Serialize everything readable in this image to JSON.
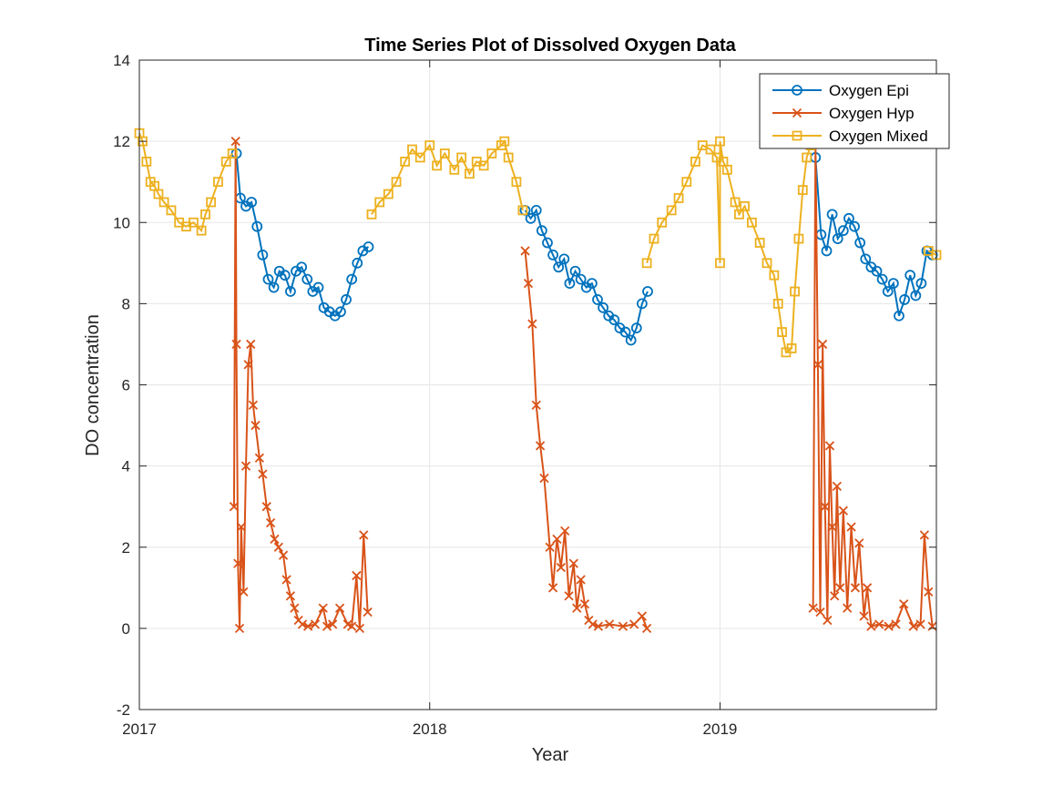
{
  "chart_data": {
    "type": "line",
    "title": "Time Series Plot of Dissolved Oxygen Data",
    "xlabel": "Year",
    "ylabel": "DO concentration",
    "xlim": [
      "2017-01-01",
      "2019-09-30"
    ],
    "ylim": [
      -2,
      14
    ],
    "x_ticks": [
      "2017",
      "2018",
      "2019"
    ],
    "y_ticks": [
      "-2",
      "0",
      "2",
      "4",
      "6",
      "8",
      "10",
      "12",
      "14"
    ],
    "grid": true,
    "legend_position": "top-right",
    "series": [
      {
        "name": "Oxygen Epi",
        "color": "#0072BD",
        "marker": "circle",
        "x": [
          "2017-05-03",
          "2017-05-08",
          "2017-05-15",
          "2017-05-22",
          "2017-05-29",
          "2017-06-05",
          "2017-06-12",
          "2017-06-19",
          "2017-06-26",
          "2017-07-03",
          "2017-07-10",
          "2017-07-17",
          "2017-07-24",
          "2017-07-31",
          "2017-08-07",
          "2017-08-14",
          "2017-08-21",
          "2017-08-28",
          "2017-09-04",
          "2017-09-11",
          "2017-09-18",
          "2017-09-25",
          "2017-10-02",
          "2017-10-09",
          "2017-10-16",
          "2018-05-01",
          "2018-05-08",
          "2018-05-15",
          "2018-05-22",
          "2018-05-29",
          "2018-06-05",
          "2018-06-12",
          "2018-06-19",
          "2018-06-26",
          "2018-07-03",
          "2018-07-10",
          "2018-07-17",
          "2018-07-24",
          "2018-07-31",
          "2018-08-07",
          "2018-08-14",
          "2018-08-21",
          "2018-08-28",
          "2018-09-04",
          "2018-09-11",
          "2018-09-18",
          "2018-09-25",
          "2018-10-02",
          "2019-05-01",
          "2019-05-08",
          "2019-05-15",
          "2019-05-22",
          "2019-05-29",
          "2019-06-05",
          "2019-06-12",
          "2019-06-19",
          "2019-06-26",
          "2019-07-03",
          "2019-07-10",
          "2019-07-17",
          "2019-07-24",
          "2019-07-31",
          "2019-08-07",
          "2019-08-14",
          "2019-08-21",
          "2019-08-28",
          "2019-09-04",
          "2019-09-11",
          "2019-09-18",
          "2019-09-25"
        ],
        "y": [
          11.7,
          10.6,
          10.4,
          10.5,
          9.9,
          9.2,
          8.6,
          8.4,
          8.8,
          8.7,
          8.3,
          8.8,
          8.9,
          8.6,
          8.3,
          8.4,
          7.9,
          7.8,
          7.7,
          7.8,
          8.1,
          8.6,
          9.0,
          9.3,
          9.4,
          10.3,
          10.1,
          10.3,
          9.8,
          9.5,
          9.2,
          8.9,
          9.1,
          8.5,
          8.8,
          8.6,
          8.4,
          8.5,
          8.1,
          7.9,
          7.7,
          7.6,
          7.4,
          7.3,
          7.1,
          7.4,
          8.0,
          8.3,
          11.6,
          9.7,
          9.3,
          10.2,
          9.6,
          9.8,
          10.1,
          9.9,
          9.5,
          9.1,
          8.9,
          8.8,
          8.6,
          8.3,
          8.5,
          7.7,
          8.1,
          8.7,
          8.2,
          8.5,
          9.3,
          9.2
        ]
      },
      {
        "name": "Oxygen Hyp",
        "color": "#D95319",
        "marker": "x",
        "x": [
          "2017-04-30",
          "2017-05-02",
          "2017-05-03",
          "2017-05-05",
          "2017-05-07",
          "2017-05-09",
          "2017-05-12",
          "2017-05-15",
          "2017-05-18",
          "2017-05-21",
          "2017-05-24",
          "2017-05-27",
          "2017-06-01",
          "2017-06-05",
          "2017-06-10",
          "2017-06-15",
          "2017-06-20",
          "2017-06-25",
          "2017-07-01",
          "2017-07-05",
          "2017-07-10",
          "2017-07-15",
          "2017-07-20",
          "2017-07-25",
          "2017-08-01",
          "2017-08-10",
          "2017-08-20",
          "2017-08-25",
          "2017-09-01",
          "2017-09-10",
          "2017-09-20",
          "2017-09-25",
          "2017-10-01",
          "2017-10-05",
          "2017-10-10",
          "2017-10-15",
          "2018-05-01",
          "2018-05-05",
          "2018-05-10",
          "2018-05-15",
          "2018-05-20",
          "2018-05-25",
          "2018-06-01",
          "2018-06-05",
          "2018-06-10",
          "2018-06-15",
          "2018-06-20",
          "2018-06-25",
          "2018-07-01",
          "2018-07-05",
          "2018-07-10",
          "2018-07-15",
          "2018-07-20",
          "2018-07-25",
          "2018-08-01",
          "2018-08-15",
          "2018-09-01",
          "2018-09-15",
          "2018-09-25",
          "2018-10-01",
          "2019-04-28",
          "2019-05-01",
          "2019-05-04",
          "2019-05-07",
          "2019-05-10",
          "2019-05-13",
          "2019-05-16",
          "2019-05-19",
          "2019-05-22",
          "2019-05-25",
          "2019-05-28",
          "2019-06-01",
          "2019-06-05",
          "2019-06-10",
          "2019-06-15",
          "2019-06-20",
          "2019-06-25",
          "2019-07-01",
          "2019-07-05",
          "2019-07-10",
          "2019-07-20",
          "2019-08-01",
          "2019-08-10",
          "2019-08-20",
          "2019-09-01",
          "2019-09-10",
          "2019-09-15",
          "2019-09-20",
          "2019-09-25"
        ],
        "y": [
          3.0,
          12.0,
          7.0,
          1.6,
          0.0,
          2.5,
          0.9,
          4.0,
          6.5,
          7.0,
          5.5,
          5.0,
          4.2,
          3.8,
          3.0,
          2.6,
          2.2,
          2.0,
          1.8,
          1.2,
          0.8,
          0.5,
          0.2,
          0.1,
          0.05,
          0.1,
          0.5,
          0.05,
          0.1,
          0.5,
          0.1,
          0.05,
          1.3,
          0.0,
          2.3,
          0.4,
          9.3,
          8.5,
          7.5,
          5.5,
          4.5,
          3.7,
          2.0,
          1.0,
          2.2,
          1.5,
          2.4,
          0.8,
          1.6,
          0.5,
          1.2,
          0.6,
          0.2,
          0.1,
          0.05,
          0.1,
          0.05,
          0.1,
          0.3,
          0.0,
          0.5,
          12.0,
          6.5,
          0.4,
          7.0,
          3.0,
          0.2,
          4.5,
          2.5,
          0.8,
          3.5,
          1.0,
          2.9,
          0.5,
          2.5,
          1.0,
          2.1,
          0.3,
          1.0,
          0.05,
          0.1,
          0.05,
          0.1,
          0.6,
          0.05,
          0.1,
          2.3,
          0.9,
          0.05
        ]
      },
      {
        "name": "Oxygen Mixed",
        "color": "#EDB120",
        "marker": "square",
        "x": [
          "2017-01-01",
          "2017-01-05",
          "2017-01-10",
          "2017-01-15",
          "2017-01-20",
          "2017-01-25",
          "2017-02-01",
          "2017-02-10",
          "2017-02-20",
          "2017-03-01",
          "2017-03-10",
          "2017-03-20",
          "2017-03-25",
          "2017-04-01",
          "2017-04-10",
          "2017-04-20",
          "2017-04-28",
          "2017-10-20",
          "2017-10-30",
          "2017-11-10",
          "2017-11-20",
          "2017-12-01",
          "2017-12-10",
          "2017-12-20",
          "2018-01-01",
          "2018-01-10",
          "2018-01-20",
          "2018-02-01",
          "2018-02-10",
          "2018-02-20",
          "2018-03-01",
          "2018-03-10",
          "2018-03-20",
          "2018-04-01",
          "2018-04-05",
          "2018-04-10",
          "2018-04-20",
          "2018-04-28",
          "2018-10-01",
          "2018-10-10",
          "2018-10-20",
          "2018-11-01",
          "2018-11-10",
          "2018-11-20",
          "2018-12-01",
          "2018-12-10",
          "2018-12-20",
          "2018-12-28",
          "2019-01-01",
          "2019-01-01",
          "2019-01-05",
          "2019-01-10",
          "2019-01-20",
          "2019-01-25",
          "2019-02-01",
          "2019-02-10",
          "2019-02-20",
          "2019-03-01",
          "2019-03-10",
          "2019-03-15",
          "2019-03-20",
          "2019-03-25",
          "2019-04-01",
          "2019-04-05",
          "2019-04-10",
          "2019-04-15",
          "2019-04-20",
          "2019-04-25",
          "2019-09-20",
          "2019-09-30"
        ],
        "y": [
          12.2,
          12.0,
          11.5,
          11.0,
          10.9,
          10.7,
          10.5,
          10.3,
          10.0,
          9.9,
          10.0,
          9.8,
          10.2,
          10.5,
          11.0,
          11.5,
          11.7,
          10.2,
          10.5,
          10.7,
          11.0,
          11.5,
          11.8,
          11.6,
          11.9,
          11.4,
          11.7,
          11.3,
          11.6,
          11.2,
          11.5,
          11.4,
          11.7,
          11.9,
          12.0,
          11.6,
          11.0,
          10.3,
          9.0,
          9.6,
          10.0,
          10.3,
          10.6,
          11.0,
          11.5,
          11.9,
          11.8,
          11.6,
          9.0,
          12.0,
          11.5,
          11.3,
          10.5,
          10.2,
          10.4,
          10.0,
          9.5,
          9.0,
          8.7,
          8.0,
          7.3,
          6.8,
          6.9,
          8.3,
          9.6,
          10.8,
          11.6,
          11.9,
          9.3,
          9.2
        ]
      }
    ]
  }
}
